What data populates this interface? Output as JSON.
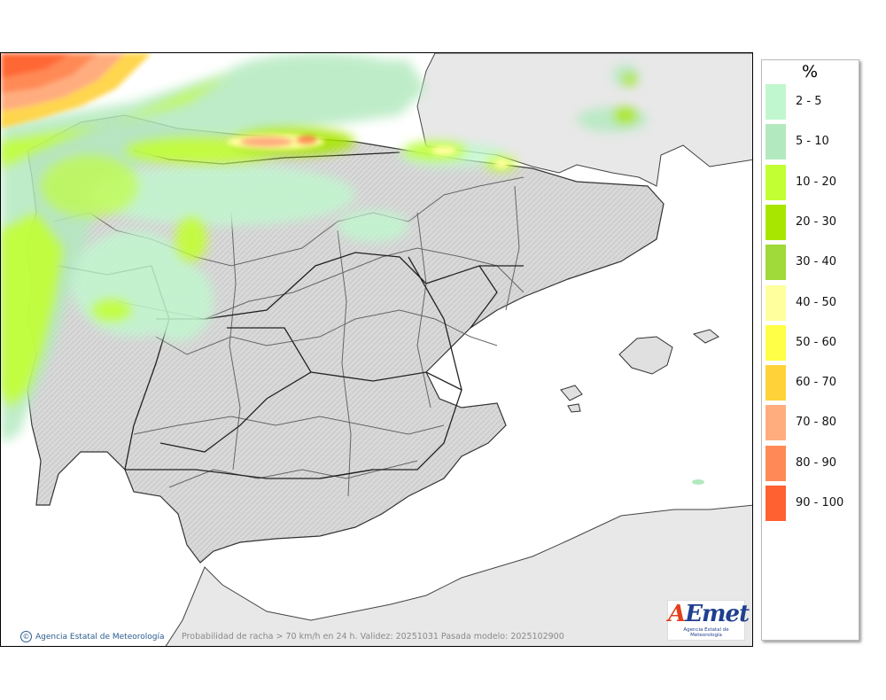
{
  "map": {
    "caption": "Probabilidad de racha > 70 km/h en 24 h. Validez: 20251031 Pasada modelo: 2025102900",
    "credit": "Agencia Estatal de Meteorología",
    "logo": {
      "main_a": "A",
      "main_e": "E",
      "main_rest": "met",
      "sub": "Agencia Estatal de Meteorología"
    },
    "colors": {
      "land": "#e3e3e3",
      "sea": "#ffffff",
      "relief": "#cfcfcf",
      "border": "#333333",
      "region_border": "#888888"
    }
  },
  "legend": {
    "title": "%",
    "items": [
      {
        "label": "2 - 5",
        "color": "#c1f7cf"
      },
      {
        "label": "5 - 10",
        "color": "#b3e9bf"
      },
      {
        "label": "10 - 20",
        "color": "#c2ff33"
      },
      {
        "label": "20 - 30",
        "color": "#a8e600"
      },
      {
        "label": "30 - 40",
        "color": "#9fd93a"
      },
      {
        "label": "40 - 50",
        "color": "#ffff9e"
      },
      {
        "label": "50 - 60",
        "color": "#ffff47"
      },
      {
        "label": "60 - 70",
        "color": "#ffd23a"
      },
      {
        "label": "70 - 80",
        "color": "#ffad7f"
      },
      {
        "label": "80 - 90",
        "color": "#ff8a57"
      },
      {
        "label": "90 - 100",
        "color": "#ff6130"
      }
    ]
  }
}
